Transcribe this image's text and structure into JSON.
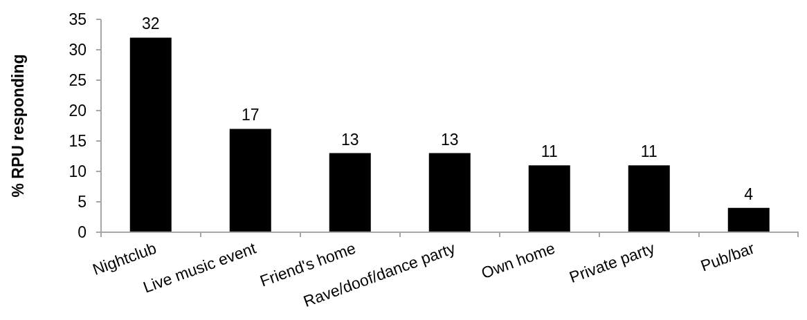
{
  "chart_data": {
    "type": "bar",
    "ylabel": "% RPU responding",
    "categories": [
      "Nightclub",
      "Live music event",
      "Friend's home",
      "Rave/doof/dance party",
      "Own home",
      "Private party",
      "Pub/bar"
    ],
    "values": [
      32,
      17,
      13,
      13,
      11,
      11,
      4
    ],
    "color": "#000000",
    "ylim": [
      0,
      35
    ],
    "yticks": [
      0,
      5,
      10,
      15,
      20,
      25,
      30,
      35
    ],
    "data_labels": true
  }
}
